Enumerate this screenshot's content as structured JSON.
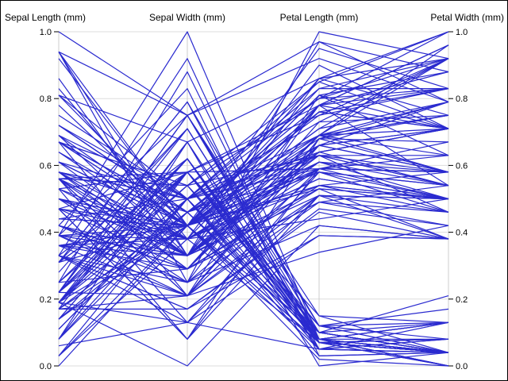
{
  "chart_data": {
    "type": "parallel-coordinates",
    "title": "",
    "axes": [
      "Sepal Length (mm)",
      "Sepal Width (mm)",
      "Petal Length (mm)",
      "Petal Width (mm)"
    ],
    "ylim": [
      0,
      1
    ],
    "yticks": [
      "0.0",
      "0.2",
      "0.4",
      "0.6",
      "0.8",
      "1.0"
    ],
    "grid": true,
    "line_color": "#2a2acf",
    "grid_color": "#dddddd",
    "lines": [
      [
        0.22,
        0.62,
        0.07,
        0.04
      ],
      [
        0.17,
        0.42,
        0.07,
        0.04
      ],
      [
        0.11,
        0.5,
        0.05,
        0.04
      ],
      [
        0.08,
        0.46,
        0.08,
        0.04
      ],
      [
        0.19,
        0.67,
        0.07,
        0.04
      ],
      [
        0.31,
        0.79,
        0.12,
        0.13
      ],
      [
        0.08,
        0.58,
        0.07,
        0.08
      ],
      [
        0.19,
        0.58,
        0.08,
        0.04
      ],
      [
        0.03,
        0.38,
        0.07,
        0.04
      ],
      [
        0.17,
        0.46,
        0.08,
        0.0
      ],
      [
        0.31,
        0.71,
        0.08,
        0.04
      ],
      [
        0.14,
        0.58,
        0.1,
        0.04
      ],
      [
        0.14,
        0.42,
        0.07,
        0.0
      ],
      [
        0.0,
        0.42,
        0.02,
        0.0
      ],
      [
        0.42,
        0.83,
        0.03,
        0.04
      ],
      [
        0.39,
        1.0,
        0.08,
        0.13
      ],
      [
        0.31,
        0.79,
        0.05,
        0.13
      ],
      [
        0.22,
        0.62,
        0.07,
        0.08
      ],
      [
        0.39,
        0.75,
        0.12,
        0.08
      ],
      [
        0.22,
        0.75,
        0.08,
        0.08
      ],
      [
        0.31,
        0.58,
        0.12,
        0.04
      ],
      [
        0.22,
        0.71,
        0.08,
        0.13
      ],
      [
        0.08,
        0.67,
        0.0,
        0.04
      ],
      [
        0.22,
        0.54,
        0.12,
        0.17
      ],
      [
        0.14,
        0.58,
        0.15,
        0.04
      ],
      [
        0.19,
        0.42,
        0.1,
        0.04
      ],
      [
        0.19,
        0.58,
        0.1,
        0.13
      ],
      [
        0.25,
        0.62,
        0.08,
        0.04
      ],
      [
        0.25,
        0.58,
        0.07,
        0.04
      ],
      [
        0.11,
        0.5,
        0.1,
        0.04
      ],
      [
        0.14,
        0.46,
        0.1,
        0.04
      ],
      [
        0.31,
        0.58,
        0.08,
        0.13
      ],
      [
        0.25,
        0.88,
        0.08,
        0.0
      ],
      [
        0.33,
        0.92,
        0.07,
        0.04
      ],
      [
        0.17,
        0.46,
        0.08,
        0.0
      ],
      [
        0.19,
        0.5,
        0.03,
        0.04
      ],
      [
        0.33,
        0.62,
        0.05,
        0.04
      ],
      [
        0.17,
        0.67,
        0.07,
        0.0
      ],
      [
        0.03,
        0.42,
        0.05,
        0.04
      ],
      [
        0.22,
        0.58,
        0.08,
        0.04
      ],
      [
        0.19,
        0.62,
        0.05,
        0.08
      ],
      [
        0.06,
        0.13,
        0.05,
        0.08
      ],
      [
        0.03,
        0.5,
        0.05,
        0.04
      ],
      [
        0.19,
        0.62,
        0.1,
        0.21
      ],
      [
        0.22,
        0.75,
        0.15,
        0.13
      ],
      [
        0.14,
        0.42,
        0.07,
        0.08
      ],
      [
        0.22,
        0.75,
        0.1,
        0.04
      ],
      [
        0.08,
        0.5,
        0.07,
        0.04
      ],
      [
        0.28,
        0.71,
        0.08,
        0.04
      ],
      [
        0.19,
        0.54,
        0.07,
        0.04
      ],
      [
        0.75,
        0.5,
        0.63,
        0.54
      ],
      [
        0.58,
        0.5,
        0.59,
        0.58
      ],
      [
        0.72,
        0.46,
        0.66,
        0.58
      ],
      [
        0.33,
        0.13,
        0.51,
        0.5
      ],
      [
        0.61,
        0.33,
        0.61,
        0.58
      ],
      [
        0.39,
        0.33,
        0.59,
        0.5
      ],
      [
        0.56,
        0.54,
        0.63,
        0.63
      ],
      [
        0.17,
        0.17,
        0.39,
        0.38
      ],
      [
        0.64,
        0.38,
        0.61,
        0.5
      ],
      [
        0.25,
        0.29,
        0.49,
        0.54
      ],
      [
        0.19,
        0.0,
        0.42,
        0.38
      ],
      [
        0.44,
        0.42,
        0.54,
        0.58
      ],
      [
        0.47,
        0.08,
        0.51,
        0.38
      ],
      [
        0.5,
        0.38,
        0.63,
        0.54
      ],
      [
        0.36,
        0.38,
        0.44,
        0.5
      ],
      [
        0.67,
        0.46,
        0.58,
        0.54
      ],
      [
        0.36,
        0.42,
        0.59,
        0.58
      ],
      [
        0.42,
        0.29,
        0.53,
        0.38
      ],
      [
        0.53,
        0.08,
        0.59,
        0.58
      ],
      [
        0.36,
        0.21,
        0.49,
        0.42
      ],
      [
        0.44,
        0.5,
        0.64,
        0.71
      ],
      [
        0.5,
        0.33,
        0.51,
        0.5
      ],
      [
        0.56,
        0.21,
        0.66,
        0.58
      ],
      [
        0.5,
        0.33,
        0.63,
        0.46
      ],
      [
        0.58,
        0.38,
        0.56,
        0.5
      ],
      [
        0.64,
        0.42,
        0.58,
        0.54
      ],
      [
        0.69,
        0.33,
        0.64,
        0.54
      ],
      [
        0.67,
        0.42,
        0.68,
        0.67
      ],
      [
        0.47,
        0.38,
        0.59,
        0.58
      ],
      [
        0.39,
        0.25,
        0.42,
        0.38
      ],
      [
        0.33,
        0.17,
        0.47,
        0.42
      ],
      [
        0.33,
        0.17,
        0.46,
        0.38
      ],
      [
        0.42,
        0.29,
        0.49,
        0.46
      ],
      [
        0.47,
        0.29,
        0.69,
        0.63
      ],
      [
        0.31,
        0.42,
        0.59,
        0.58
      ],
      [
        0.47,
        0.58,
        0.59,
        0.63
      ],
      [
        0.67,
        0.46,
        0.63,
        0.58
      ],
      [
        0.56,
        0.13,
        0.58,
        0.5
      ],
      [
        0.36,
        0.42,
        0.53,
        0.5
      ],
      [
        0.33,
        0.21,
        0.51,
        0.5
      ],
      [
        0.33,
        0.25,
        0.58,
        0.46
      ],
      [
        0.5,
        0.42,
        0.61,
        0.54
      ],
      [
        0.42,
        0.25,
        0.51,
        0.46
      ],
      [
        0.19,
        0.13,
        0.39,
        0.38
      ],
      [
        0.36,
        0.29,
        0.54,
        0.5
      ],
      [
        0.39,
        0.42,
        0.54,
        0.46
      ],
      [
        0.39,
        0.38,
        0.54,
        0.5
      ],
      [
        0.53,
        0.38,
        0.56,
        0.5
      ],
      [
        0.22,
        0.21,
        0.34,
        0.42
      ],
      [
        0.39,
        0.33,
        0.53,
        0.5
      ],
      [
        0.56,
        0.54,
        0.85,
        1.0
      ],
      [
        0.42,
        0.29,
        0.69,
        0.75
      ],
      [
        0.78,
        0.42,
        0.83,
        0.83
      ],
      [
        0.56,
        0.38,
        0.78,
        0.71
      ],
      [
        0.61,
        0.42,
        0.81,
        0.88
      ],
      [
        0.92,
        0.42,
        0.95,
        0.83
      ],
      [
        0.17,
        0.21,
        0.59,
        0.67
      ],
      [
        0.83,
        0.38,
        0.9,
        0.71
      ],
      [
        0.67,
        0.21,
        0.81,
        0.71
      ],
      [
        0.81,
        0.67,
        0.86,
        1.0
      ],
      [
        0.61,
        0.5,
        0.69,
        0.79
      ],
      [
        0.58,
        0.29,
        0.73,
        0.75
      ],
      [
        0.69,
        0.42,
        0.76,
        0.83
      ],
      [
        0.39,
        0.21,
        0.68,
        0.79
      ],
      [
        0.42,
        0.33,
        0.69,
        0.96
      ],
      [
        0.58,
        0.5,
        0.73,
        0.92
      ],
      [
        0.61,
        0.42,
        0.76,
        0.71
      ],
      [
        0.94,
        0.75,
        0.97,
        0.88
      ],
      [
        0.94,
        0.25,
        1.0,
        0.92
      ],
      [
        0.47,
        0.08,
        0.68,
        0.58
      ],
      [
        0.72,
        0.5,
        0.8,
        0.92
      ],
      [
        0.36,
        0.33,
        0.66,
        0.79
      ],
      [
        0.94,
        0.33,
        0.97,
        0.79
      ],
      [
        0.56,
        0.29,
        0.66,
        0.71
      ],
      [
        0.67,
        0.54,
        0.8,
        0.83
      ],
      [
        0.81,
        0.5,
        0.85,
        0.71
      ],
      [
        0.53,
        0.33,
        0.64,
        0.71
      ],
      [
        0.5,
        0.42,
        0.66,
        0.71
      ],
      [
        0.58,
        0.33,
        0.78,
        0.83
      ],
      [
        0.81,
        0.42,
        0.81,
        0.63
      ],
      [
        0.86,
        0.33,
        0.86,
        0.75
      ],
      [
        1.0,
        0.75,
        0.92,
        0.79
      ],
      [
        0.58,
        0.33,
        0.78,
        0.88
      ],
      [
        0.56,
        0.33,
        0.69,
        0.58
      ],
      [
        0.5,
        0.25,
        0.78,
        0.54
      ],
      [
        0.94,
        0.42,
        0.86,
        0.92
      ],
      [
        0.56,
        0.58,
        0.78,
        0.96
      ],
      [
        0.58,
        0.46,
        0.76,
        0.71
      ],
      [
        0.47,
        0.42,
        0.64,
        0.71
      ],
      [
        0.72,
        0.46,
        0.75,
        0.83
      ],
      [
        0.67,
        0.46,
        0.78,
        0.96
      ],
      [
        0.72,
        0.46,
        0.69,
        0.92
      ],
      [
        0.42,
        0.29,
        0.69,
        0.75
      ],
      [
        0.69,
        0.5,
        0.83,
        0.92
      ],
      [
        0.67,
        0.54,
        0.8,
        1.0
      ],
      [
        0.67,
        0.42,
        0.71,
        0.92
      ],
      [
        0.56,
        0.21,
        0.68,
        0.75
      ],
      [
        0.61,
        0.42,
        0.71,
        0.79
      ],
      [
        0.53,
        0.58,
        0.75,
        0.92
      ],
      [
        0.44,
        0.42,
        0.69,
        0.71
      ]
    ]
  }
}
